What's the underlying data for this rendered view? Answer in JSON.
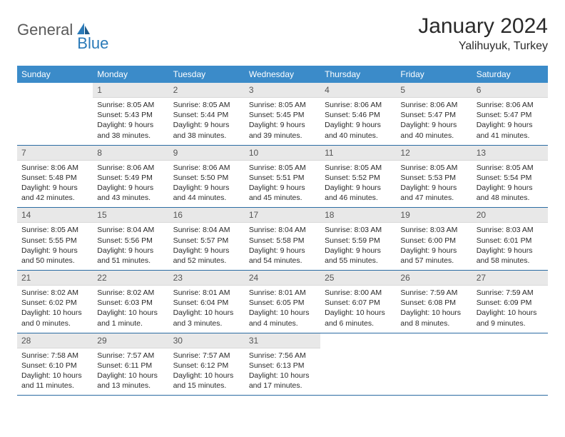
{
  "brand": {
    "part1": "General",
    "part2": "Blue"
  },
  "title": "January 2024",
  "location": "Yalihuyuk, Turkey",
  "colors": {
    "header_bg": "#3b8bc9",
    "header_text": "#ffffff",
    "daynum_bg": "#e8e8e8",
    "border": "#2b6ca3",
    "brand_gray": "#5a5a5a",
    "brand_blue": "#2a7ab8",
    "text": "#2a2a2a",
    "page_bg": "#ffffff"
  },
  "fonts": {
    "title_size": 30,
    "location_size": 16,
    "logo_size": 22,
    "weekday_size": 12,
    "daynum_size": 12,
    "body_size": 10.5
  },
  "weekdays": [
    "Sunday",
    "Monday",
    "Tuesday",
    "Wednesday",
    "Thursday",
    "Friday",
    "Saturday"
  ],
  "weeks": [
    [
      null,
      {
        "n": "1",
        "sr": "Sunrise: 8:05 AM",
        "ss": "Sunset: 5:43 PM",
        "d1": "Daylight: 9 hours",
        "d2": "and 38 minutes."
      },
      {
        "n": "2",
        "sr": "Sunrise: 8:05 AM",
        "ss": "Sunset: 5:44 PM",
        "d1": "Daylight: 9 hours",
        "d2": "and 38 minutes."
      },
      {
        "n": "3",
        "sr": "Sunrise: 8:05 AM",
        "ss": "Sunset: 5:45 PM",
        "d1": "Daylight: 9 hours",
        "d2": "and 39 minutes."
      },
      {
        "n": "4",
        "sr": "Sunrise: 8:06 AM",
        "ss": "Sunset: 5:46 PM",
        "d1": "Daylight: 9 hours",
        "d2": "and 40 minutes."
      },
      {
        "n": "5",
        "sr": "Sunrise: 8:06 AM",
        "ss": "Sunset: 5:47 PM",
        "d1": "Daylight: 9 hours",
        "d2": "and 40 minutes."
      },
      {
        "n": "6",
        "sr": "Sunrise: 8:06 AM",
        "ss": "Sunset: 5:47 PM",
        "d1": "Daylight: 9 hours",
        "d2": "and 41 minutes."
      }
    ],
    [
      {
        "n": "7",
        "sr": "Sunrise: 8:06 AM",
        "ss": "Sunset: 5:48 PM",
        "d1": "Daylight: 9 hours",
        "d2": "and 42 minutes."
      },
      {
        "n": "8",
        "sr": "Sunrise: 8:06 AM",
        "ss": "Sunset: 5:49 PM",
        "d1": "Daylight: 9 hours",
        "d2": "and 43 minutes."
      },
      {
        "n": "9",
        "sr": "Sunrise: 8:06 AM",
        "ss": "Sunset: 5:50 PM",
        "d1": "Daylight: 9 hours",
        "d2": "and 44 minutes."
      },
      {
        "n": "10",
        "sr": "Sunrise: 8:05 AM",
        "ss": "Sunset: 5:51 PM",
        "d1": "Daylight: 9 hours",
        "d2": "and 45 minutes."
      },
      {
        "n": "11",
        "sr": "Sunrise: 8:05 AM",
        "ss": "Sunset: 5:52 PM",
        "d1": "Daylight: 9 hours",
        "d2": "and 46 minutes."
      },
      {
        "n": "12",
        "sr": "Sunrise: 8:05 AM",
        "ss": "Sunset: 5:53 PM",
        "d1": "Daylight: 9 hours",
        "d2": "and 47 minutes."
      },
      {
        "n": "13",
        "sr": "Sunrise: 8:05 AM",
        "ss": "Sunset: 5:54 PM",
        "d1": "Daylight: 9 hours",
        "d2": "and 48 minutes."
      }
    ],
    [
      {
        "n": "14",
        "sr": "Sunrise: 8:05 AM",
        "ss": "Sunset: 5:55 PM",
        "d1": "Daylight: 9 hours",
        "d2": "and 50 minutes."
      },
      {
        "n": "15",
        "sr": "Sunrise: 8:04 AM",
        "ss": "Sunset: 5:56 PM",
        "d1": "Daylight: 9 hours",
        "d2": "and 51 minutes."
      },
      {
        "n": "16",
        "sr": "Sunrise: 8:04 AM",
        "ss": "Sunset: 5:57 PM",
        "d1": "Daylight: 9 hours",
        "d2": "and 52 minutes."
      },
      {
        "n": "17",
        "sr": "Sunrise: 8:04 AM",
        "ss": "Sunset: 5:58 PM",
        "d1": "Daylight: 9 hours",
        "d2": "and 54 minutes."
      },
      {
        "n": "18",
        "sr": "Sunrise: 8:03 AM",
        "ss": "Sunset: 5:59 PM",
        "d1": "Daylight: 9 hours",
        "d2": "and 55 minutes."
      },
      {
        "n": "19",
        "sr": "Sunrise: 8:03 AM",
        "ss": "Sunset: 6:00 PM",
        "d1": "Daylight: 9 hours",
        "d2": "and 57 minutes."
      },
      {
        "n": "20",
        "sr": "Sunrise: 8:03 AM",
        "ss": "Sunset: 6:01 PM",
        "d1": "Daylight: 9 hours",
        "d2": "and 58 minutes."
      }
    ],
    [
      {
        "n": "21",
        "sr": "Sunrise: 8:02 AM",
        "ss": "Sunset: 6:02 PM",
        "d1": "Daylight: 10 hours",
        "d2": "and 0 minutes."
      },
      {
        "n": "22",
        "sr": "Sunrise: 8:02 AM",
        "ss": "Sunset: 6:03 PM",
        "d1": "Daylight: 10 hours",
        "d2": "and 1 minute."
      },
      {
        "n": "23",
        "sr": "Sunrise: 8:01 AM",
        "ss": "Sunset: 6:04 PM",
        "d1": "Daylight: 10 hours",
        "d2": "and 3 minutes."
      },
      {
        "n": "24",
        "sr": "Sunrise: 8:01 AM",
        "ss": "Sunset: 6:05 PM",
        "d1": "Daylight: 10 hours",
        "d2": "and 4 minutes."
      },
      {
        "n": "25",
        "sr": "Sunrise: 8:00 AM",
        "ss": "Sunset: 6:07 PM",
        "d1": "Daylight: 10 hours",
        "d2": "and 6 minutes."
      },
      {
        "n": "26",
        "sr": "Sunrise: 7:59 AM",
        "ss": "Sunset: 6:08 PM",
        "d1": "Daylight: 10 hours",
        "d2": "and 8 minutes."
      },
      {
        "n": "27",
        "sr": "Sunrise: 7:59 AM",
        "ss": "Sunset: 6:09 PM",
        "d1": "Daylight: 10 hours",
        "d2": "and 9 minutes."
      }
    ],
    [
      {
        "n": "28",
        "sr": "Sunrise: 7:58 AM",
        "ss": "Sunset: 6:10 PM",
        "d1": "Daylight: 10 hours",
        "d2": "and 11 minutes."
      },
      {
        "n": "29",
        "sr": "Sunrise: 7:57 AM",
        "ss": "Sunset: 6:11 PM",
        "d1": "Daylight: 10 hours",
        "d2": "and 13 minutes."
      },
      {
        "n": "30",
        "sr": "Sunrise: 7:57 AM",
        "ss": "Sunset: 6:12 PM",
        "d1": "Daylight: 10 hours",
        "d2": "and 15 minutes."
      },
      {
        "n": "31",
        "sr": "Sunrise: 7:56 AM",
        "ss": "Sunset: 6:13 PM",
        "d1": "Daylight: 10 hours",
        "d2": "and 17 minutes."
      },
      null,
      null,
      null
    ]
  ]
}
